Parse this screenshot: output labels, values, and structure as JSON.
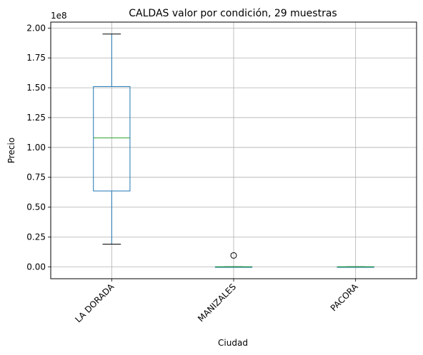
{
  "chart_data": {
    "type": "box",
    "title": "CALDAS valor por condición, 29 muestras",
    "xlabel": "Ciudad",
    "ylabel": "Precio",
    "y_offset_text": "1e8",
    "y_scale": 100000000,
    "ylim": [
      -10000000,
      205000000
    ],
    "yticks": [
      0,
      25000000,
      50000000,
      75000000,
      100000000,
      125000000,
      150000000,
      175000000,
      200000000
    ],
    "ytick_labels": [
      "0.00",
      "0.25",
      "0.50",
      "0.75",
      "1.00",
      "1.25",
      "1.50",
      "1.75",
      "2.00"
    ],
    "grid": true,
    "categories": [
      "LA DORADA",
      "MANIZALES",
      "PACORA"
    ],
    "boxes": [
      {
        "category": "LA DORADA",
        "whisker_low": 19000000,
        "q1": 63500000,
        "median": 108000000,
        "q3": 151000000,
        "whisker_high": 195000000,
        "outliers": []
      },
      {
        "category": "MANIZALES",
        "whisker_low": 0,
        "q1": 0,
        "median": 0,
        "q3": 0,
        "whisker_high": 0,
        "outliers": [
          9500000
        ]
      },
      {
        "category": "PACORA",
        "whisker_low": 0,
        "q1": 0,
        "median": 0,
        "q3": 0,
        "whisker_high": 0,
        "outliers": []
      }
    ],
    "colors": {
      "box": "#1f77b4",
      "median": "#2ca02c",
      "whisker": "#000000",
      "grid": "#b0b0b0"
    }
  }
}
